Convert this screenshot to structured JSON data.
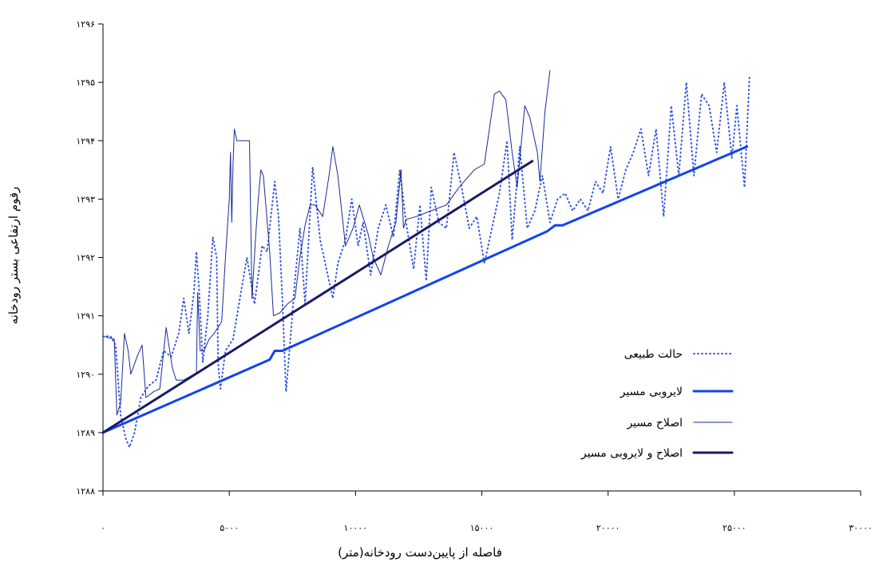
{
  "chart_data": {
    "type": "line",
    "title": "",
    "xlabel": "فاصله از پایین‌دست رودخانه(متر)",
    "ylabel": "رقوم ارتفاعی بستر رودخانه",
    "xlim": [
      0,
      30000
    ],
    "ylim": [
      1288,
      1296
    ],
    "x_ticks": [
      {
        "value": 0,
        "label": "۰"
      },
      {
        "value": 5000,
        "label": "۵۰۰۰"
      },
      {
        "value": 10000,
        "label": "۱۰۰۰۰"
      },
      {
        "value": 15000,
        "label": "۱۵۰۰۰"
      },
      {
        "value": 20000,
        "label": "۲۰۰۰۰"
      },
      {
        "value": 25000,
        "label": "۲۵۰۰۰"
      },
      {
        "value": 30000,
        "label": "۳۰۰۰۰"
      }
    ],
    "y_ticks": [
      {
        "value": 1288,
        "label": "۱۲۸۸"
      },
      {
        "value": 1289,
        "label": "۱۲۸۹"
      },
      {
        "value": 1290,
        "label": "۱۲۹۰"
      },
      {
        "value": 1291,
        "label": "۱۲۹۱"
      },
      {
        "value": 1292,
        "label": "۱۲۹۲"
      },
      {
        "value": 1293,
        "label": "۱۲۹۳"
      },
      {
        "value": 1294,
        "label": "۱۲۹۴"
      },
      {
        "value": 1295,
        "label": "۱۲۹۵"
      },
      {
        "value": 1296,
        "label": "۱۲۹۶"
      }
    ],
    "grid": false,
    "legend_position": "bottom-right",
    "series": [
      {
        "name": "حالت طبیعی",
        "color": "#3355dd",
        "style": "dotted",
        "width": 2,
        "points": [
          [
            0,
            1290.65
          ],
          [
            300,
            1290.65
          ],
          [
            500,
            1290.5
          ],
          [
            700,
            1289.3
          ],
          [
            900,
            1288.9
          ],
          [
            1050,
            1288.75
          ],
          [
            1250,
            1289.0
          ],
          [
            1500,
            1289.6
          ],
          [
            1800,
            1289.8
          ],
          [
            2100,
            1289.9
          ],
          [
            2400,
            1290.4
          ],
          [
            2700,
            1290.3
          ],
          [
            3000,
            1290.7
          ],
          [
            3200,
            1291.3
          ],
          [
            3400,
            1290.7
          ],
          [
            3600,
            1291.4
          ],
          [
            3700,
            1292.1
          ],
          [
            3800,
            1291.5
          ],
          [
            3950,
            1290.2
          ],
          [
            4150,
            1291.0
          ],
          [
            4350,
            1292.35
          ],
          [
            4500,
            1292.0
          ],
          [
            4560,
            1290.2
          ],
          [
            4650,
            1289.75
          ],
          [
            4850,
            1290.4
          ],
          [
            5150,
            1290.6
          ],
          [
            5500,
            1291.5
          ],
          [
            5700,
            1292.0
          ],
          [
            6000,
            1291.2
          ],
          [
            6300,
            1292.2
          ],
          [
            6500,
            1292.1
          ],
          [
            6800,
            1293.3
          ],
          [
            6950,
            1292.7
          ],
          [
            7100,
            1291.3
          ],
          [
            7250,
            1289.7
          ],
          [
            7400,
            1290.5
          ],
          [
            7600,
            1291.6
          ],
          [
            7800,
            1292.5
          ],
          [
            8000,
            1291.2
          ],
          [
            8300,
            1293.55
          ],
          [
            8600,
            1292.3
          ],
          [
            8900,
            1291.7
          ],
          [
            9100,
            1291.3
          ],
          [
            9300,
            1291.9
          ],
          [
            9600,
            1292.3
          ],
          [
            9850,
            1293.0
          ],
          [
            10100,
            1292.2
          ],
          [
            10300,
            1292.6
          ],
          [
            10600,
            1291.7
          ],
          [
            10900,
            1292.5
          ],
          [
            11200,
            1292.9
          ],
          [
            11500,
            1292.35
          ],
          [
            11750,
            1293.5
          ],
          [
            12000,
            1292.6
          ],
          [
            12300,
            1291.8
          ],
          [
            12550,
            1292.9
          ],
          [
            12800,
            1291.6
          ],
          [
            13000,
            1293.2
          ],
          [
            13300,
            1292.6
          ],
          [
            13600,
            1292.5
          ],
          [
            13900,
            1293.8
          ],
          [
            14200,
            1293.2
          ],
          [
            14500,
            1292.5
          ],
          [
            14800,
            1292.7
          ],
          [
            15100,
            1291.9
          ],
          [
            15400,
            1292.5
          ],
          [
            15700,
            1293.1
          ],
          [
            16000,
            1294.0
          ],
          [
            16200,
            1292.3
          ],
          [
            16500,
            1293.9
          ],
          [
            16800,
            1292.5
          ],
          [
            17100,
            1292.8
          ],
          [
            17400,
            1293.4
          ],
          [
            17700,
            1292.6
          ],
          [
            18000,
            1293.0
          ],
          [
            18300,
            1293.1
          ],
          [
            18600,
            1292.8
          ],
          [
            18900,
            1293.0
          ],
          [
            19200,
            1292.8
          ],
          [
            19500,
            1293.3
          ],
          [
            19800,
            1293.1
          ],
          [
            20100,
            1293.9
          ],
          [
            20400,
            1293.0
          ],
          [
            20700,
            1293.5
          ],
          [
            21000,
            1293.8
          ],
          [
            21300,
            1294.2
          ],
          [
            21600,
            1293.4
          ],
          [
            21900,
            1294.2
          ],
          [
            22200,
            1292.7
          ],
          [
            22500,
            1294.6
          ],
          [
            22800,
            1293.4
          ],
          [
            23100,
            1295.0
          ],
          [
            23400,
            1293.4
          ],
          [
            23700,
            1294.8
          ],
          [
            24000,
            1294.6
          ],
          [
            24300,
            1293.8
          ],
          [
            24600,
            1295.0
          ],
          [
            24900,
            1293.7
          ],
          [
            25100,
            1294.6
          ],
          [
            25400,
            1293.2
          ],
          [
            25600,
            1295.1
          ]
        ]
      },
      {
        "name": "لایروبی مسیر",
        "color": "#1144ee",
        "style": "solid",
        "width": 3,
        "points": [
          [
            0,
            1289.0
          ],
          [
            6600,
            1290.25
          ],
          [
            6800,
            1290.4
          ],
          [
            7100,
            1290.4
          ],
          [
            17600,
            1292.45
          ],
          [
            17900,
            1292.55
          ],
          [
            18200,
            1292.55
          ],
          [
            25500,
            1293.9
          ]
        ]
      },
      {
        "name": "اصلاح مسیر",
        "color": "#1a2a99",
        "style": "solid",
        "width": 1,
        "points": [
          [
            0,
            1290.65
          ],
          [
            450,
            1290.6
          ],
          [
            550,
            1289.3
          ],
          [
            700,
            1289.5
          ],
          [
            850,
            1290.7
          ],
          [
            1000,
            1290.4
          ],
          [
            1100,
            1290.0
          ],
          [
            1350,
            1290.3
          ],
          [
            1550,
            1290.5
          ],
          [
            1700,
            1289.6
          ],
          [
            2000,
            1289.7
          ],
          [
            2250,
            1289.75
          ],
          [
            2500,
            1290.8
          ],
          [
            2750,
            1290.1
          ],
          [
            2900,
            1289.9
          ],
          [
            3000,
            1289.9
          ],
          [
            3200,
            1289.9
          ],
          [
            3600,
            1290.0
          ],
          [
            3700,
            1290.0
          ],
          [
            3750,
            1291.4
          ],
          [
            3850,
            1290.4
          ],
          [
            4000,
            1290.4
          ],
          [
            4200,
            1290.6
          ],
          [
            4400,
            1290.7
          ],
          [
            4700,
            1290.9
          ],
          [
            4850,
            1292.0
          ],
          [
            5000,
            1293.0
          ],
          [
            5050,
            1293.8
          ],
          [
            5100,
            1292.6
          ],
          [
            5150,
            1293.6
          ],
          [
            5200,
            1294.2
          ],
          [
            5300,
            1294.0
          ],
          [
            5500,
            1294.0
          ],
          [
            5800,
            1294.0
          ],
          [
            5900,
            1291.3
          ],
          [
            6050,
            1292.4
          ],
          [
            6150,
            1293.0
          ],
          [
            6250,
            1293.5
          ],
          [
            6350,
            1293.4
          ],
          [
            6600,
            1292.1
          ],
          [
            6750,
            1291.0
          ],
          [
            7000,
            1291.05
          ],
          [
            7300,
            1291.2
          ],
          [
            7600,
            1291.3
          ],
          [
            7800,
            1292.0
          ],
          [
            8000,
            1292.55
          ],
          [
            8200,
            1292.9
          ],
          [
            8400,
            1292.9
          ],
          [
            8700,
            1292.7
          ],
          [
            8950,
            1293.4
          ],
          [
            9100,
            1293.9
          ],
          [
            9300,
            1293.4
          ],
          [
            9600,
            1292.2
          ],
          [
            9900,
            1292.5
          ],
          [
            10150,
            1292.9
          ],
          [
            10500,
            1292.4
          ],
          [
            10700,
            1292.0
          ],
          [
            11000,
            1291.7
          ],
          [
            11300,
            1292.2
          ],
          [
            11600,
            1292.6
          ],
          [
            11800,
            1293.5
          ],
          [
            11900,
            1292.5
          ],
          [
            12000,
            1292.65
          ],
          [
            12400,
            1292.7
          ],
          [
            13000,
            1292.8
          ],
          [
            13600,
            1292.9
          ],
          [
            14100,
            1293.2
          ],
          [
            14700,
            1293.5
          ],
          [
            15100,
            1293.6
          ],
          [
            15300,
            1294.2
          ],
          [
            15500,
            1294.8
          ],
          [
            15700,
            1294.85
          ],
          [
            15950,
            1294.7
          ],
          [
            16200,
            1293.8
          ],
          [
            16400,
            1293.2
          ],
          [
            16700,
            1294.6
          ],
          [
            16900,
            1294.4
          ],
          [
            17200,
            1293.8
          ],
          [
            17300,
            1293.3
          ],
          [
            17500,
            1294.5
          ],
          [
            17700,
            1295.2
          ]
        ]
      },
      {
        "name": "اصلاح و لایروبی مسیر",
        "color": "#1a1a66",
        "style": "solid",
        "width": 3,
        "points": [
          [
            0,
            1289.0
          ],
          [
            17000,
            1293.65
          ]
        ]
      }
    ]
  }
}
